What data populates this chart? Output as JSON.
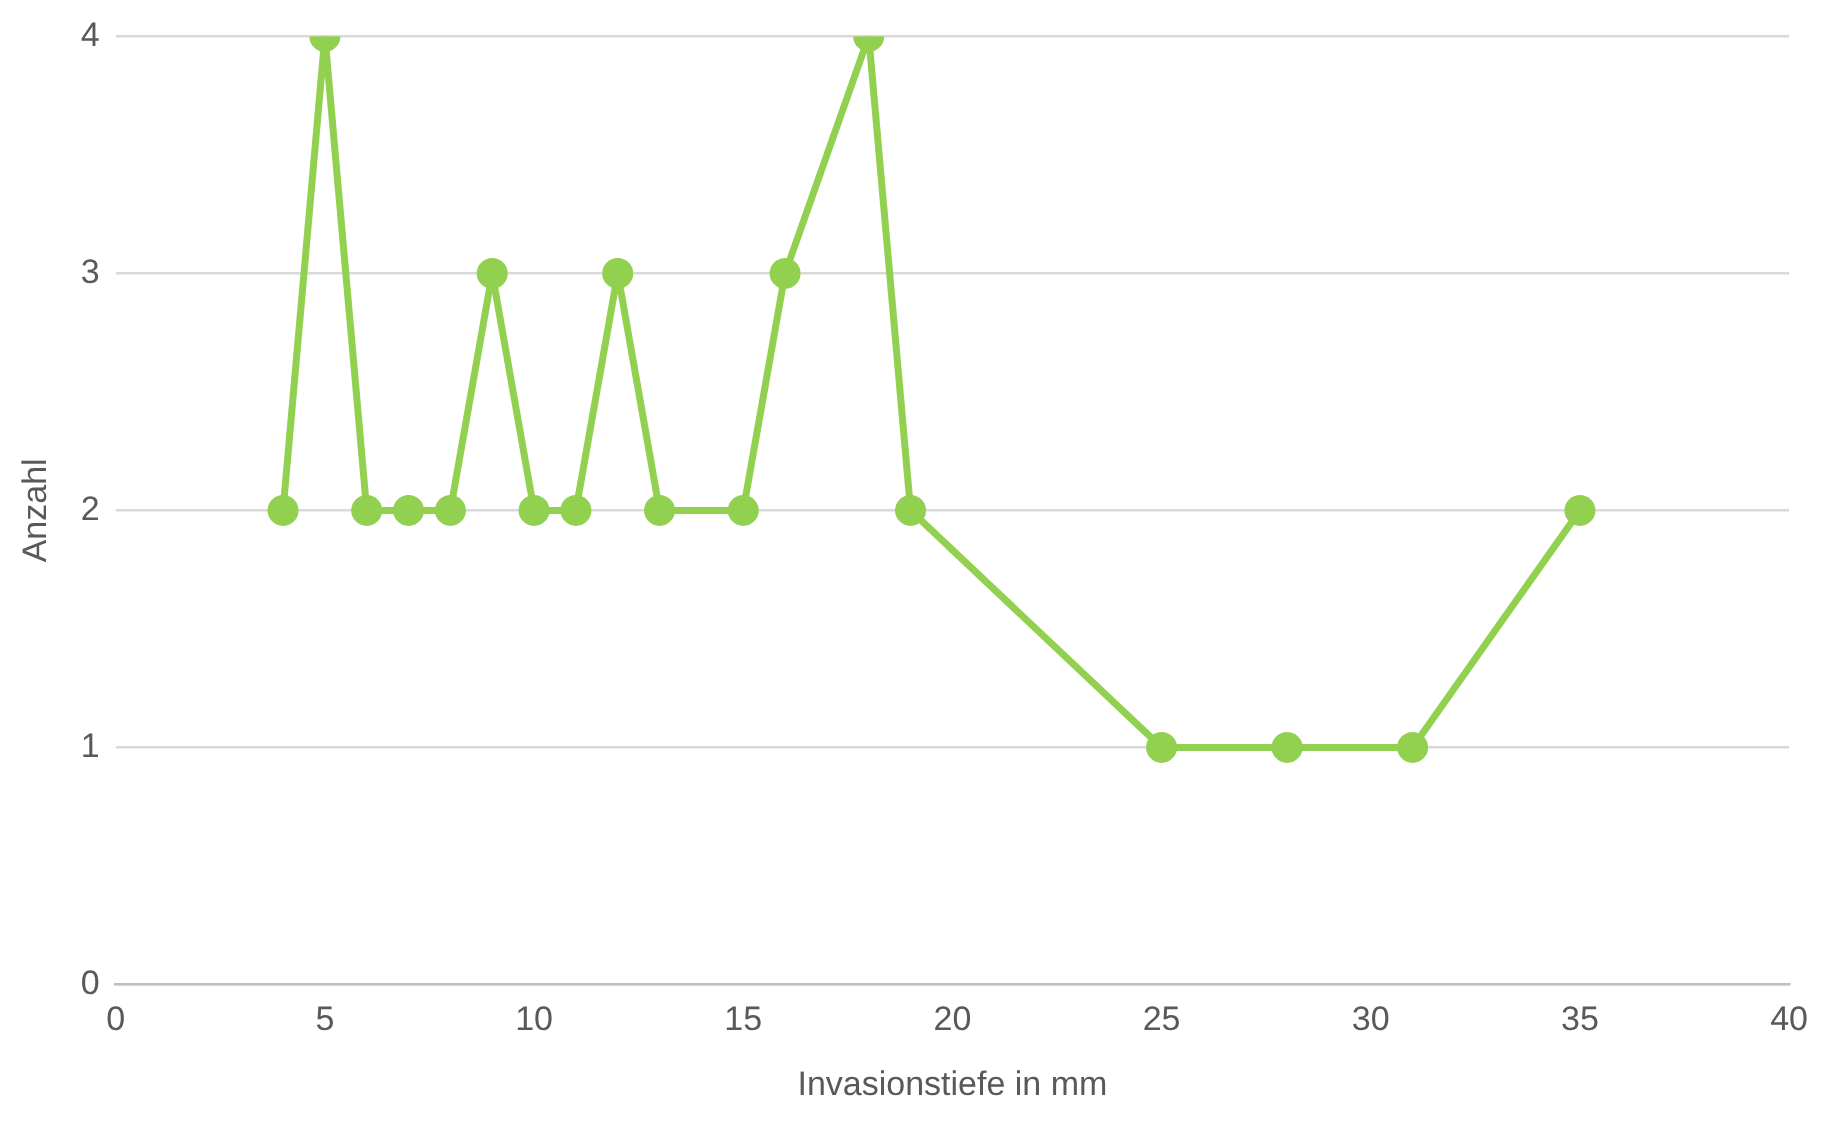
{
  "chart_data": {
    "type": "line",
    "xlabel": "Invasionstiefe in mm",
    "ylabel": "Anzahl",
    "x": [
      4,
      5,
      6,
      7,
      8,
      9,
      10,
      11,
      12,
      13,
      15,
      16,
      18,
      19,
      25,
      28,
      31,
      35
    ],
    "series": [
      {
        "color": "#92d050",
        "values": [
          2,
          4,
          2,
          2,
          2,
          3,
          2,
          2,
          3,
          2,
          2,
          3,
          4,
          2,
          1,
          1,
          1,
          2
        ]
      }
    ],
    "xlim": [
      0,
      40
    ],
    "xticks": [
      0,
      5,
      10,
      15,
      20,
      25,
      30,
      35,
      40
    ],
    "ylim": [
      0,
      4
    ],
    "yticks": [
      0,
      1,
      2,
      3,
      4
    ],
    "grid": "y",
    "legend": false,
    "marker": "circle",
    "line_style": "solid"
  }
}
